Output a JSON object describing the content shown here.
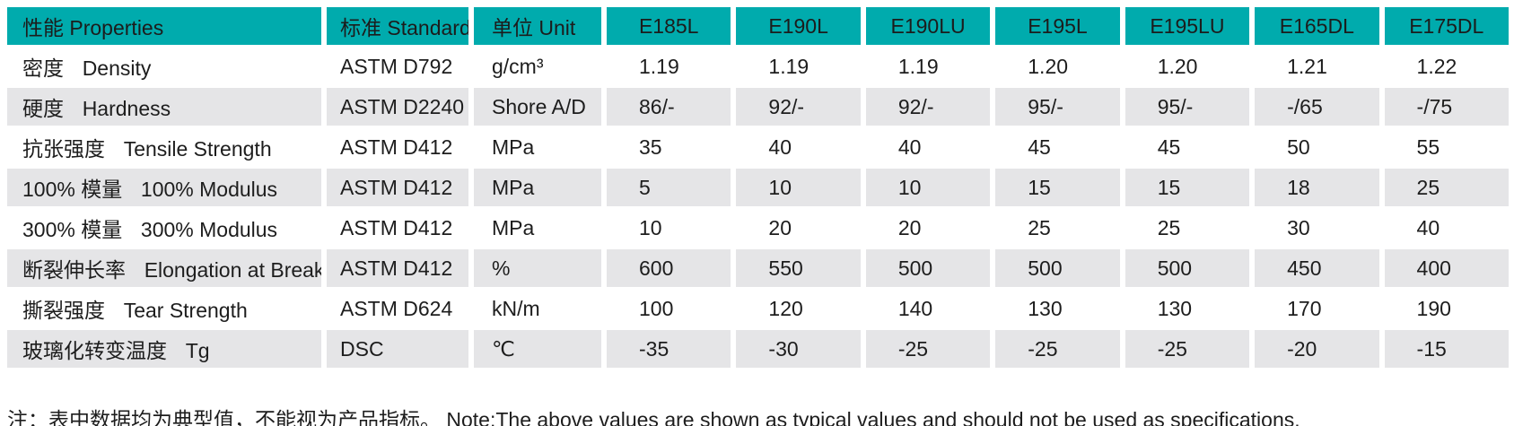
{
  "colors": {
    "header_bg": "#00ABAD",
    "shaded_row_bg": "#E5E5E7",
    "text": "#1d1d1d"
  },
  "table": {
    "header": {
      "properties_cn": "性能",
      "properties_en": "Properties",
      "standard_cn": "标准",
      "standard_en": "Standard",
      "unit_cn": "单位",
      "unit_en": "Unit",
      "grades": [
        "E185L",
        "E190L",
        "E190LU",
        "E195L",
        "E195LU",
        "E165DL",
        "E175DL"
      ]
    },
    "rows": [
      {
        "property_cn": "密度",
        "property_en": "Density",
        "standard": "ASTM D792",
        "unit": "g/cm³",
        "values": [
          "1.19",
          "1.19",
          "1.19",
          "1.20",
          "1.20",
          "1.21",
          "1.22"
        ]
      },
      {
        "property_cn": "硬度",
        "property_en": "Hardness",
        "standard": "ASTM D2240",
        "unit": "Shore A/D",
        "values": [
          "86/-",
          "92/-",
          "92/-",
          "95/-",
          "95/-",
          "-/65",
          "-/75"
        ]
      },
      {
        "property_cn": "抗张强度",
        "property_en": "Tensile Strength",
        "standard": "ASTM D412",
        "unit": "MPa",
        "values": [
          "35",
          "40",
          "40",
          "45",
          "45",
          "50",
          "55"
        ]
      },
      {
        "property_cn": "100% 模量",
        "property_en": "100% Modulus",
        "standard": "ASTM D412",
        "unit": "MPa",
        "values": [
          "5",
          "10",
          "10",
          "15",
          "15",
          "18",
          "25"
        ]
      },
      {
        "property_cn": "300% 模量",
        "property_en": "300% Modulus",
        "standard": "ASTM D412",
        "unit": "MPa",
        "values": [
          "10",
          "20",
          "20",
          "25",
          "25",
          "30",
          "40"
        ]
      },
      {
        "property_cn": "断裂伸长率",
        "property_en": "Elongation at Break",
        "standard": "ASTM D412",
        "unit": "%",
        "values": [
          "600",
          "550",
          "500",
          "500",
          "500",
          "450",
          "400"
        ]
      },
      {
        "property_cn": "撕裂强度",
        "property_en": "Tear Strength",
        "standard": "ASTM D624",
        "unit": "kN/m",
        "values": [
          "100",
          "120",
          "140",
          "130",
          "130",
          "170",
          "190"
        ]
      },
      {
        "property_cn": "玻璃化转变温度",
        "property_en": "Tg",
        "standard": "DSC",
        "unit": "℃",
        "values": [
          "-35",
          "-30",
          "-25",
          "-25",
          "-25",
          "-20",
          "-15"
        ]
      }
    ]
  },
  "note": "注：表中数据均为典型值，不能视为产品指标。 Note:The above values are shown as typical values and should not be used as specifications."
}
